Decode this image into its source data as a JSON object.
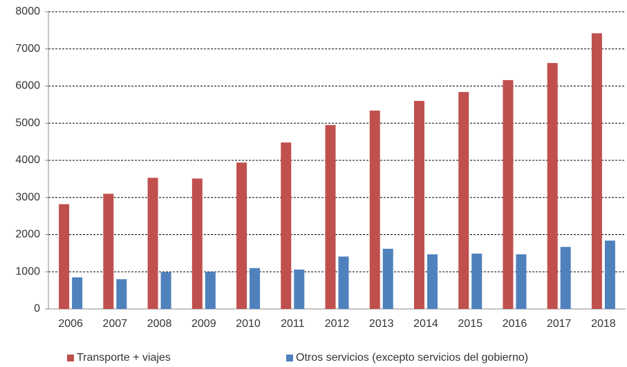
{
  "chart_data": {
    "type": "bar",
    "categories": [
      "2006",
      "2007",
      "2008",
      "2009",
      "2010",
      "2011",
      "2012",
      "2013",
      "2014",
      "2015",
      "2016",
      "2017",
      "2018"
    ],
    "series": [
      {
        "name": "Transporte + viajes",
        "color": "#c0504d",
        "values": [
          2820,
          3100,
          3530,
          3510,
          3940,
          4480,
          4950,
          5340,
          5600,
          5840,
          6160,
          6620,
          7420
        ]
      },
      {
        "name": "Otros servicios (excepto servicios del gobierno)",
        "color": "#4f81bd",
        "values": [
          850,
          800,
          990,
          1000,
          1100,
          1060,
          1410,
          1620,
          1470,
          1490,
          1470,
          1670,
          1840
        ]
      }
    ],
    "ylim": [
      0,
      8000
    ],
    "yticks": [
      0,
      1000,
      2000,
      3000,
      4000,
      5000,
      6000,
      7000,
      8000
    ],
    "grid": true,
    "legend": "bottom"
  }
}
